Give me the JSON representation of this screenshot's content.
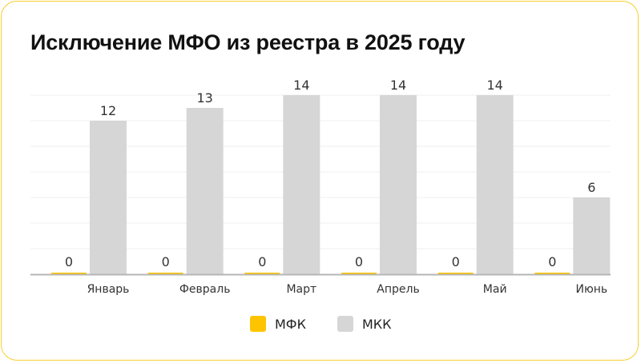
{
  "title": "Исключение МФО из реестра в 2025 году",
  "colors": {
    "border": "#f5cf2f",
    "mfk": "#ffc400",
    "mkk": "#d6d6d6",
    "grid": "#efefef",
    "axis": "#b5b5b5"
  },
  "chart_data": {
    "type": "bar",
    "title": "Исключение МФО из реестра в 2025 году",
    "categories": [
      "Январь",
      "Февраль",
      "Март",
      "Апрель",
      "Май",
      "Июнь"
    ],
    "series": [
      {
        "name": "МФК",
        "values": [
          0,
          0,
          0,
          0,
          0,
          0
        ],
        "color": "#ffc400"
      },
      {
        "name": "МКК",
        "values": [
          12,
          13,
          14,
          14,
          14,
          6
        ],
        "color": "#d6d6d6"
      }
    ],
    "xlabel": "",
    "ylabel": "",
    "ylim": [
      0,
      14
    ],
    "grid": true,
    "legend": "bottom"
  },
  "legend": [
    {
      "label": "МФК",
      "color": "#ffc400"
    },
    {
      "label": "МКК",
      "color": "#d6d6d6"
    }
  ]
}
